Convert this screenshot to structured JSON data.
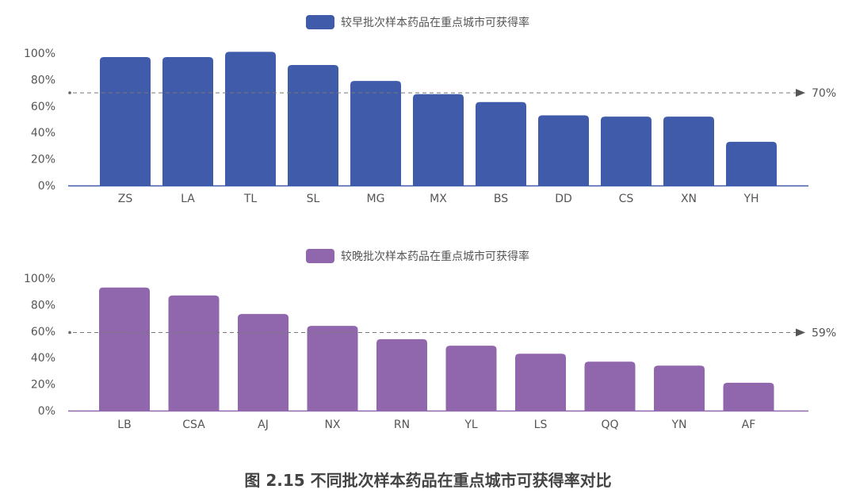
{
  "caption": "图 2.15 不同批次样本药品在重点城市可获得率对比",
  "chart_data": [
    {
      "type": "bar",
      "legend": "较早批次样本药品在重点城市可获得率",
      "legend_position": "top-center",
      "color": "#3F5BAA",
      "categories": [
        "ZS",
        "LA",
        "TL",
        "SL",
        "MG",
        "MX",
        "BS",
        "DD",
        "CS",
        "XN",
        "YH"
      ],
      "values": [
        97,
        97,
        101,
        91,
        79,
        69,
        63,
        53,
        52,
        52,
        33
      ],
      "y_ticks": [
        "0%",
        "20%",
        "40%",
        "60%",
        "80%",
        "100%"
      ],
      "ylim": [
        0,
        100
      ],
      "reference_line": {
        "value": 70,
        "label": "70%"
      }
    },
    {
      "type": "bar",
      "legend": "较晚批次样本药品在重点城市可获得率",
      "legend_position": "top-center",
      "color": "#9067AD",
      "categories": [
        "LB",
        "CSA",
        "AJ",
        "NX",
        "RN",
        "YL",
        "LS",
        "QQ",
        "YN",
        "AF"
      ],
      "values": [
        93,
        87,
        73,
        64,
        54,
        49,
        43,
        37,
        34,
        21
      ],
      "y_ticks": [
        "0%",
        "20%",
        "40%",
        "60%",
        "80%",
        "100%"
      ],
      "ylim": [
        0,
        100
      ],
      "reference_line": {
        "value": 59,
        "label": "59%"
      }
    }
  ]
}
